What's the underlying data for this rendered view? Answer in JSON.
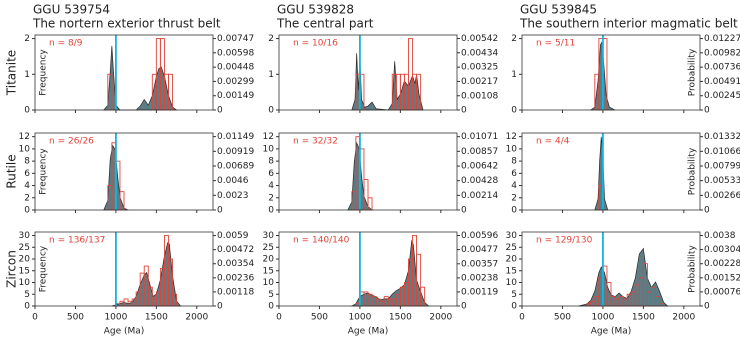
{
  "row_labels": [
    "Titanite",
    "Rutile",
    "Zircon"
  ],
  "chart_data": [
    {
      "type": "histogram",
      "title": "GGU 539754",
      "subtitle": "The nortern exterior thrust belt",
      "annotation": "n = 8/9",
      "ylabel": "Frequency",
      "xlim": [
        0,
        2200
      ],
      "xticks": [
        0,
        500,
        1000,
        1500,
        2000
      ],
      "ylim": [
        0,
        2.1
      ],
      "yticks": [
        0,
        1,
        2
      ],
      "y2lim": [
        0,
        0.00784
      ],
      "y2ticks": [
        0,
        0.00149,
        0.00299,
        0.00448,
        0.00598,
        0.00747
      ],
      "reference_line": 1000,
      "reference_color": "#19b3dc",
      "histogram": {
        "color": "#e0453a",
        "bins": [
          900,
          950,
          1000,
          1050,
          1100,
          1150,
          1200,
          1250,
          1300,
          1350,
          1400,
          1450,
          1500,
          1550,
          1600,
          1650,
          1700
        ],
        "counts": [
          1,
          0,
          0,
          0,
          0,
          0,
          0,
          0,
          0,
          0,
          0,
          1,
          2,
          2,
          1,
          1
        ]
      },
      "kde": {
        "axis": "y2",
        "color": "#4d6e77",
        "x": [
          850,
          900,
          930,
          950,
          970,
          1000,
          1050,
          1250,
          1300,
          1350,
          1400,
          1450,
          1500,
          1530,
          1560,
          1600,
          1650,
          1700,
          1750
        ],
        "values": [
          0,
          0.0005,
          0.004,
          0.0067,
          0.004,
          0.0005,
          0,
          0,
          0.0004,
          0.0011,
          0.0005,
          0.0015,
          0.0035,
          0.0043,
          0.0045,
          0.0035,
          0.0015,
          0.0003,
          0
        ]
      }
    },
    {
      "type": "histogram",
      "title": "GGU 539828",
      "subtitle": "The central part",
      "annotation": "n = 10/16",
      "xlim": [
        0,
        2200
      ],
      "xticks": [
        0,
        500,
        1000,
        1500,
        2000
      ],
      "ylim": [
        0,
        2.1
      ],
      "yticks": [
        0,
        1,
        2
      ],
      "y2lim": [
        0,
        0.00569
      ],
      "y2ticks": [
        0,
        0.00108,
        0.00217,
        0.00325,
        0.00434,
        0.00542
      ],
      "reference_line": 1000,
      "reference_color": "#19b3dc",
      "histogram": {
        "color": "#e0453a",
        "bins": [
          900,
          950,
          1000,
          1050,
          1100,
          1150,
          1200,
          1250,
          1300,
          1350,
          1400,
          1450,
          1500,
          1550,
          1600,
          1650,
          1700,
          1750
        ],
        "counts": [
          0,
          1,
          1,
          0,
          0,
          0,
          0,
          0,
          0,
          0,
          1,
          1,
          1,
          1,
          2,
          1,
          1
        ]
      },
      "kde": {
        "axis": "y2",
        "color": "#4d6e77",
        "x": [
          900,
          940,
          960,
          980,
          1000,
          1020,
          1060,
          1100,
          1150,
          1200,
          1350,
          1400,
          1430,
          1460,
          1500,
          1550,
          1600,
          1650,
          1680,
          1700,
          1730,
          1780
        ],
        "values": [
          0,
          0.0008,
          0.0043,
          0.0015,
          0.0039,
          0.0008,
          0.0002,
          0.0003,
          0.0006,
          0.0001,
          0,
          0.0005,
          0.0037,
          0.0008,
          0.0012,
          0.0022,
          0.0018,
          0.0026,
          0.002,
          0.0027,
          0.0012,
          0
        ]
      }
    },
    {
      "type": "histogram",
      "title": "GGU 539845",
      "subtitle": "The southern interior magmatic belt",
      "annotation": "n = 5/11",
      "ylabel": "Probability",
      "xlim": [
        0,
        2200
      ],
      "xticks": [
        0,
        500,
        1000,
        1500,
        2000
      ],
      "ylim": [
        0,
        2.1
      ],
      "yticks": [
        0,
        1,
        2
      ],
      "y2lim": [
        0,
        0.01288
      ],
      "y2ticks": [
        0,
        0.00245,
        0.00491,
        0.00736,
        0.00982,
        0.01227
      ],
      "reference_line": 1000,
      "reference_color": "#19b3dc",
      "histogram": {
        "color": "#e0453a",
        "bins": [
          900,
          950,
          1000,
          1050
        ],
        "counts": [
          1,
          2,
          2
        ]
      },
      "kde": {
        "axis": "y2",
        "color": "#4d6e77",
        "x": [
          850,
          900,
          940,
          970,
          990,
          1010,
          1040,
          1080,
          1150
        ],
        "values": [
          0,
          0.0005,
          0.005,
          0.0112,
          0.0117,
          0.008,
          0.0025,
          0.0005,
          0
        ]
      }
    },
    {
      "type": "histogram",
      "annotation": "n = 26/26",
      "ylabel": "Frequency",
      "xlim": [
        0,
        2200
      ],
      "xticks": [
        0,
        500,
        1000,
        1500,
        2000
      ],
      "ylim": [
        0,
        12.6
      ],
      "yticks": [
        0,
        2,
        4,
        6,
        8,
        10,
        12
      ],
      "y2lim": [
        0,
        0.01206
      ],
      "y2ticks": [
        0,
        0.0023,
        0.0046,
        0.00689,
        0.00919,
        0.01149
      ],
      "reference_line": 1000,
      "reference_color": "#19b3dc",
      "histogram": {
        "color": "#e0453a",
        "bins": [
          900,
          950,
          1000,
          1050,
          1100
        ],
        "counts": [
          4,
          11,
          8,
          3
        ]
      },
      "kde": {
        "axis": "y2",
        "color": "#4d6e77",
        "x": [
          850,
          900,
          930,
          960,
          990,
          1020,
          1050,
          1100,
          1150
        ],
        "values": [
          0,
          0.0015,
          0.008,
          0.0101,
          0.0095,
          0.0055,
          0.002,
          0.0003,
          0
        ]
      }
    },
    {
      "type": "histogram",
      "annotation": "n = 32/32",
      "xlim": [
        0,
        2200
      ],
      "xticks": [
        0,
        500,
        1000,
        1500,
        2000
      ],
      "ylim": [
        0,
        12.6
      ],
      "yticks": [
        0,
        2,
        4,
        6,
        8,
        10,
        12
      ],
      "y2lim": [
        0,
        0.01125
      ],
      "y2ticks": [
        0,
        0.00214,
        0.00428,
        0.00642,
        0.00857,
        0.01071
      ],
      "reference_line": 1000,
      "reference_color": "#19b3dc",
      "histogram": {
        "color": "#e0453a",
        "bins": [
          900,
          950,
          1000,
          1050,
          1100,
          1150
        ],
        "counts": [
          3,
          12,
          10,
          5,
          2
        ]
      },
      "kde": {
        "axis": "y2",
        "color": "#4d6e77",
        "x": [
          850,
          900,
          930,
          960,
          990,
          1020,
          1050,
          1100,
          1150
        ],
        "values": [
          0,
          0.0012,
          0.007,
          0.0098,
          0.009,
          0.005,
          0.002,
          0.0005,
          0
        ]
      }
    },
    {
      "type": "histogram",
      "annotation": "n = 4/4",
      "ylabel": "Probability",
      "xlim": [
        0,
        2200
      ],
      "xticks": [
        0,
        500,
        1000,
        1500,
        2000
      ],
      "ylim": [
        0,
        12.6
      ],
      "yticks": [
        0,
        2,
        4,
        6,
        8,
        10,
        12
      ],
      "y2lim": [
        0,
        0.01399
      ],
      "y2ticks": [
        0,
        0.00266,
        0.00533,
        0.00799,
        0.01066,
        0.01332
      ],
      "reference_line": 1000,
      "reference_color": "#19b3dc",
      "histogram": {
        "color": "#e0453a",
        "bins": [
          950,
          1000
        ],
        "counts": [
          4
        ]
      },
      "kde": {
        "axis": "y2",
        "color": "#4d6e77",
        "x": [
          900,
          940,
          960,
          980,
          1000,
          1020,
          1060
        ],
        "values": [
          0,
          0.002,
          0.009,
          0.0133,
          0.0095,
          0.002,
          0
        ]
      }
    },
    {
      "type": "histogram",
      "annotation": "n = 136/137",
      "ylabel": "Frequency",
      "xlabel": "Age (Ma)",
      "xlim": [
        0,
        2200
      ],
      "xticks": [
        0,
        500,
        1000,
        1500,
        2000
      ],
      "ylim": [
        0,
        31.5
      ],
      "yticks": [
        0,
        5,
        10,
        15,
        20,
        25,
        30
      ],
      "y2lim": [
        0,
        0.0062
      ],
      "y2ticks": [
        0,
        0.00118,
        0.00236,
        0.00354,
        0.00472,
        0.0059
      ],
      "reference_line": 1000,
      "reference_color": "#19b3dc",
      "histogram": {
        "color": "#e0453a",
        "bins": [
          1000,
          1050,
          1100,
          1150,
          1200,
          1250,
          1300,
          1350,
          1400,
          1450,
          1500,
          1550,
          1600,
          1650,
          1700,
          1750,
          1800
        ],
        "counts": [
          1,
          2,
          3,
          2,
          3,
          6,
          14,
          17,
          8,
          3,
          6,
          16,
          30,
          20,
          5,
          0
        ]
      },
      "kde": {
        "axis": "y2",
        "color": "#4d6e77",
        "x": [
          950,
          1000,
          1050,
          1100,
          1150,
          1200,
          1250,
          1300,
          1350,
          1380,
          1420,
          1460,
          1500,
          1550,
          1600,
          1640,
          1660,
          1700,
          1750,
          1800
        ],
        "values": [
          0,
          0.0001,
          0.0002,
          0.0003,
          0.0002,
          0.0003,
          0.0008,
          0.0018,
          0.0026,
          0.0028,
          0.0018,
          0.0008,
          0.001,
          0.0022,
          0.0042,
          0.0053,
          0.0052,
          0.0025,
          0.0004,
          0
        ]
      }
    },
    {
      "type": "histogram",
      "annotation": "n = 140/140",
      "xlabel": "Age (Ma)",
      "xlim": [
        0,
        2200
      ],
      "xticks": [
        0,
        500,
        1000,
        1500,
        2000
      ],
      "ylim": [
        0,
        31.5
      ],
      "yticks": [
        0,
        5,
        10,
        15,
        20,
        25,
        30
      ],
      "y2lim": [
        0,
        0.00626
      ],
      "y2ticks": [
        0,
        0.00119,
        0.00238,
        0.00357,
        0.00477,
        0.00596
      ],
      "reference_line": 1000,
      "reference_color": "#19b3dc",
      "histogram": {
        "color": "#e0453a",
        "bins": [
          950,
          1000,
          1050,
          1100,
          1150,
          1200,
          1250,
          1300,
          1350,
          1400,
          1450,
          1500,
          1550,
          1600,
          1650,
          1700,
          1750,
          1800
        ],
        "counts": [
          1,
          6,
          6,
          5,
          4,
          3,
          2,
          4,
          3,
          3,
          5,
          8,
          10,
          20,
          30,
          22,
          8
        ]
      },
      "kde": {
        "axis": "y2",
        "color": "#4d6e77",
        "x": [
          900,
          950,
          1000,
          1050,
          1100,
          1150,
          1200,
          1250,
          1300,
          1350,
          1400,
          1450,
          1500,
          1550,
          1600,
          1640,
          1660,
          1700,
          1750,
          1800,
          1850
        ],
        "values": [
          0,
          0.0002,
          0.0008,
          0.001,
          0.0011,
          0.0009,
          0.0008,
          0.0005,
          0.0006,
          0.0006,
          0.001,
          0.0013,
          0.0015,
          0.0018,
          0.003,
          0.0055,
          0.0052,
          0.0022,
          0.0012,
          0.0003,
          0
        ]
      }
    },
    {
      "type": "histogram",
      "annotation": "n = 129/130",
      "ylabel": "Probability",
      "xlabel": "Age (Ma)",
      "xlim": [
        0,
        2200
      ],
      "xticks": [
        0,
        500,
        1000,
        1500,
        2000
      ],
      "ylim": [
        0,
        31.5
      ],
      "yticks": [
        0,
        5,
        10,
        15,
        20,
        25,
        30
      ],
      "y2lim": [
        0,
        0.00399
      ],
      "y2ticks": [
        0,
        0.00076,
        0.00152,
        0.00228,
        0.00304,
        0.0038
      ],
      "reference_line": 1000,
      "reference_color": "#19b3dc",
      "histogram": {
        "color": "#e0453a",
        "bins": [
          800,
          850,
          900,
          950,
          1000,
          1050,
          1100,
          1150,
          1200,
          1250,
          1300,
          1350,
          1400,
          1450,
          1500,
          1550,
          1600,
          1650,
          1700,
          1750
        ],
        "counts": [
          1,
          2,
          4,
          12,
          17,
          10,
          4,
          3,
          4,
          3,
          5,
          6,
          9,
          12,
          18,
          6,
          8,
          4,
          1
        ]
      },
      "kde": {
        "axis": "y2",
        "color": "#4d6e77",
        "x": [
          700,
          800,
          850,
          900,
          950,
          980,
          1020,
          1060,
          1100,
          1150,
          1200,
          1250,
          1300,
          1350,
          1400,
          1450,
          1500,
          1550,
          1600,
          1650,
          1700,
          1750,
          1800
        ],
        "values": [
          0,
          0.0001,
          0.0003,
          0.0008,
          0.0018,
          0.0021,
          0.0018,
          0.001,
          0.0006,
          0.0005,
          0.0007,
          0.0005,
          0.0004,
          0.0008,
          0.0015,
          0.0028,
          0.0031,
          0.0015,
          0.001,
          0.0013,
          0.0008,
          0.0002,
          0
        ]
      }
    }
  ]
}
